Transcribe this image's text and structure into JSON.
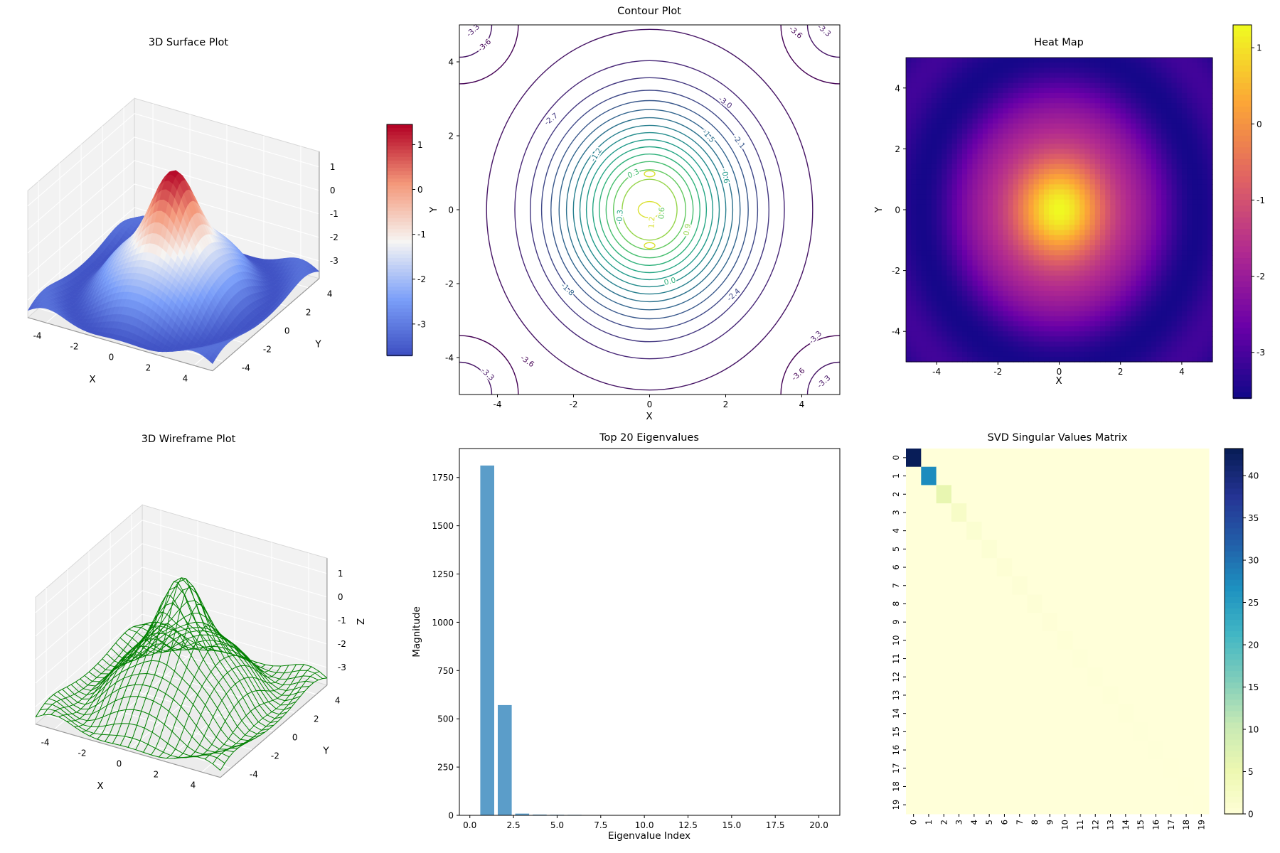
{
  "figure": {
    "background": "#ffffff"
  },
  "colormaps": {
    "coolwarm": [
      "#3b4cc0",
      "#7b9ff9",
      "#f6f5f3",
      "#f4987a",
      "#b40426"
    ],
    "viridis": [
      "#440154",
      "#482878",
      "#3e4a89",
      "#31688e",
      "#26828e",
      "#1f9e89",
      "#35b779",
      "#6ece58",
      "#fde725"
    ],
    "plasma": [
      "#0d0887",
      "#6a00a8",
      "#b12a90",
      "#e16462",
      "#fca636",
      "#f0f921"
    ],
    "ylgnbu": [
      "#ffffd9",
      "#edf8b1",
      "#c7e9b4",
      "#7fcdbb",
      "#41b6c4",
      "#1d91c0",
      "#225ea8",
      "#253494",
      "#081d58"
    ]
  },
  "chart_data": [
    {
      "type": "surface3d",
      "title": "3D Surface Plot",
      "xlabel": "X",
      "ylabel": "Y",
      "x_ticks": [
        -4,
        -2,
        0,
        2,
        4
      ],
      "y_ticks": [
        -4,
        -2,
        0,
        2,
        4
      ],
      "z_ticks": [
        1,
        0,
        -1,
        -2,
        -3
      ],
      "xlim": [
        -5,
        5
      ],
      "ylim": [
        -5,
        5
      ],
      "zlim": [
        -3.75,
        1.65
      ],
      "surface": {
        "amp": 4.8,
        "sigma2": 6,
        "offset": -3.45,
        "ripple_amp": 0.3,
        "ripple_freq": 2,
        "grid_n": 44
      },
      "colormap": "coolwarm",
      "colorbar_ticks": [
        1,
        0,
        -1,
        -2,
        -3
      ],
      "colorbar_range": [
        -3.7,
        1.45
      ]
    },
    {
      "type": "contour",
      "title": "Contour Plot",
      "xlabel": "X",
      "ylabel": "Y",
      "x_ticks": [
        -4,
        -2,
        0,
        2,
        4
      ],
      "y_ticks": [
        -4,
        -2,
        0,
        2,
        4
      ],
      "xlim": [
        -5,
        5
      ],
      "ylim": [
        -5,
        5
      ],
      "colormap": "viridis",
      "vmin": -3.6,
      "vmax": 1.35,
      "func": {
        "amp": 4.8,
        "sigma2": 6,
        "offset": -3.45
      },
      "ellipse_aspect": {
        "rx": 0.94,
        "ry": 1.07
      },
      "levels": [
        -3.3,
        -3.0,
        -2.7,
        -2.4,
        -2.1,
        -1.8,
        -1.5,
        -1.2,
        -0.9,
        -0.6,
        -0.3,
        0.0,
        0.3,
        0.6,
        0.9
      ],
      "inner_contours": [
        {
          "level": 1.2,
          "cx": 0,
          "cy": 0,
          "rx": 0.3,
          "ry": 0.22
        },
        {
          "level": 1.2,
          "cx": 0,
          "cy": 0.97,
          "rx": 0.14,
          "ry": 0.08
        },
        {
          "level": 1.2,
          "cx": 0,
          "cy": -0.97,
          "rx": 0.14,
          "ry": 0.08
        }
      ],
      "corner_arcs": [
        {
          "level": -3.3,
          "radius": 0.85
        },
        {
          "level": -3.6,
          "radius": 1.55
        }
      ],
      "labels": [
        {
          "text": "-3.3",
          "x": -4.6,
          "y": 4.8,
          "rot": -42
        },
        {
          "text": "-3.6",
          "x": -4.3,
          "y": 4.4,
          "rot": -42
        },
        {
          "text": "-3.6",
          "x": 3.8,
          "y": 4.75,
          "rot": 40
        },
        {
          "text": "-3.3",
          "x": 4.55,
          "y": 4.8,
          "rot": 40
        },
        {
          "text": "-3.0",
          "x": 1.95,
          "y": 2.85,
          "rot": 38
        },
        {
          "text": "-2.7",
          "x": -2.55,
          "y": 2.4,
          "rot": -38
        },
        {
          "text": "-1.5",
          "x": 1.5,
          "y": 1.95,
          "rot": 48
        },
        {
          "text": "-2.1",
          "x": 2.3,
          "y": 1.8,
          "rot": 52
        },
        {
          "text": "-1.2",
          "x": -1.35,
          "y": 1.45,
          "rot": -58
        },
        {
          "text": "-0.6",
          "x": 1.93,
          "y": 0.9,
          "rot": 80
        },
        {
          "text": "0.3",
          "x": -0.4,
          "y": 0.92,
          "rot": -25
        },
        {
          "text": "-0.3",
          "x": -0.72,
          "y": -0.2,
          "rot": -86
        },
        {
          "text": "0.6",
          "x": 0.38,
          "y": -0.1,
          "rot": -86
        },
        {
          "text": "1.2",
          "x": 0.12,
          "y": -0.35,
          "rot": -86
        },
        {
          "text": "0.9",
          "x": 1.05,
          "y": -0.55,
          "rot": -80
        },
        {
          "text": "0.0",
          "x": 0.55,
          "y": -2.0,
          "rot": -14
        },
        {
          "text": "-1.8",
          "x": -2.2,
          "y": -2.2,
          "rot": 44
        },
        {
          "text": "-2.4",
          "x": 2.25,
          "y": -2.35,
          "rot": -42
        },
        {
          "text": "-3.6",
          "x": -3.25,
          "y": -4.15,
          "rot": 36
        },
        {
          "text": "-3.3",
          "x": -4.3,
          "y": -4.5,
          "rot": 42
        },
        {
          "text": "-3.3",
          "x": 4.4,
          "y": -3.5,
          "rot": -46
        },
        {
          "text": "-3.6",
          "x": 3.95,
          "y": -4.5,
          "rot": -42
        },
        {
          "text": "-3.3",
          "x": 4.62,
          "y": -4.7,
          "rot": -42
        }
      ]
    },
    {
      "type": "heatmap",
      "title": "Heat Map",
      "xlabel": "X",
      "ylabel": "Y",
      "x_ticks": [
        -4,
        -2,
        0,
        2,
        4
      ],
      "y_ticks": [
        -4,
        -2,
        0,
        2,
        4
      ],
      "xlim": [
        -5,
        5
      ],
      "ylim": [
        -5,
        5
      ],
      "colormap": "plasma",
      "vmin": -3.75,
      "vmax": 1.65,
      "surface": {
        "amp": 4.8,
        "sigma2": 6,
        "offset": -3.45,
        "ripple_amp": 0.3,
        "ripple_freq": 2,
        "grid_n": 60
      },
      "colorbar_ticks": [
        1,
        0,
        -1,
        -2,
        -3
      ],
      "colorbar_range": [
        -3.6,
        1.3
      ]
    },
    {
      "type": "wireframe3d",
      "title": "3D Wireframe Plot",
      "xlabel": "X",
      "ylabel": "Y",
      "zlabel": "Z",
      "x_ticks": [
        -4,
        -2,
        0,
        2,
        4
      ],
      "y_ticks": [
        -4,
        -2,
        0,
        2,
        4
      ],
      "z_ticks": [
        1,
        0,
        -1,
        -2,
        -3
      ],
      "xlim": [
        -5,
        5
      ],
      "ylim": [
        -5,
        5
      ],
      "zlim": [
        -3.75,
        1.65
      ],
      "surface": {
        "amp": 4.8,
        "sigma2": 6,
        "offset": -3.45,
        "ripple_amp": 0.3,
        "ripple_freq": 2,
        "grid_n": 24
      },
      "line_color": "#008000"
    },
    {
      "type": "bar",
      "title": "Top 20 Eigenvalues",
      "xlabel": "Eigenvalue Index",
      "ylabel": "Magnitude",
      "indices": [
        1,
        2,
        3,
        4,
        5,
        6,
        7,
        8,
        9,
        10,
        11,
        12,
        13,
        14,
        15,
        16,
        17,
        18,
        19,
        20
      ],
      "values": [
        1812,
        571,
        9,
        4,
        3,
        2.4,
        2,
        1.7,
        1.5,
        1.3,
        1.1,
        1,
        0.9,
        0.8,
        0.7,
        0.65,
        0.6,
        0.55,
        0.5,
        0.45
      ],
      "bar_color": "#5b9dc9",
      "x_ticks": [
        0,
        2.5,
        5,
        7.5,
        10,
        12.5,
        15,
        17.5,
        20
      ],
      "x_tick_labels": [
        "0.0",
        "2.5",
        "5.0",
        "7.5",
        "10.0",
        "12.5",
        "15.0",
        "17.5",
        "20.0"
      ],
      "y_ticks": [
        0,
        250,
        500,
        750,
        1000,
        1250,
        1500,
        1750
      ],
      "xlim": [
        -0.6,
        21.2
      ],
      "ylim": [
        0,
        1900
      ]
    },
    {
      "type": "matrix_heatmap",
      "title": "SVD Singular Values Matrix",
      "size": 20,
      "diagonal": [
        43.2,
        27.5,
        6.1,
        2.4,
        1.1,
        0.8,
        0.65,
        0.55,
        0.48,
        0.42,
        0.37,
        0.33,
        0.29,
        0.26,
        0.23,
        0.2,
        0.17,
        0.15,
        0.12,
        0.1
      ],
      "off_diagonal_value": 0,
      "colormap": "ylgnbu",
      "vmin": 0,
      "vmax": 43.2,
      "tick_labels": [
        "0",
        "1",
        "2",
        "3",
        "4",
        "5",
        "6",
        "7",
        "8",
        "9",
        "10",
        "11",
        "12",
        "13",
        "14",
        "15",
        "16",
        "17",
        "18",
        "19"
      ],
      "colorbar_ticks": [
        0,
        5,
        10,
        15,
        20,
        25,
        30,
        35,
        40
      ]
    }
  ]
}
